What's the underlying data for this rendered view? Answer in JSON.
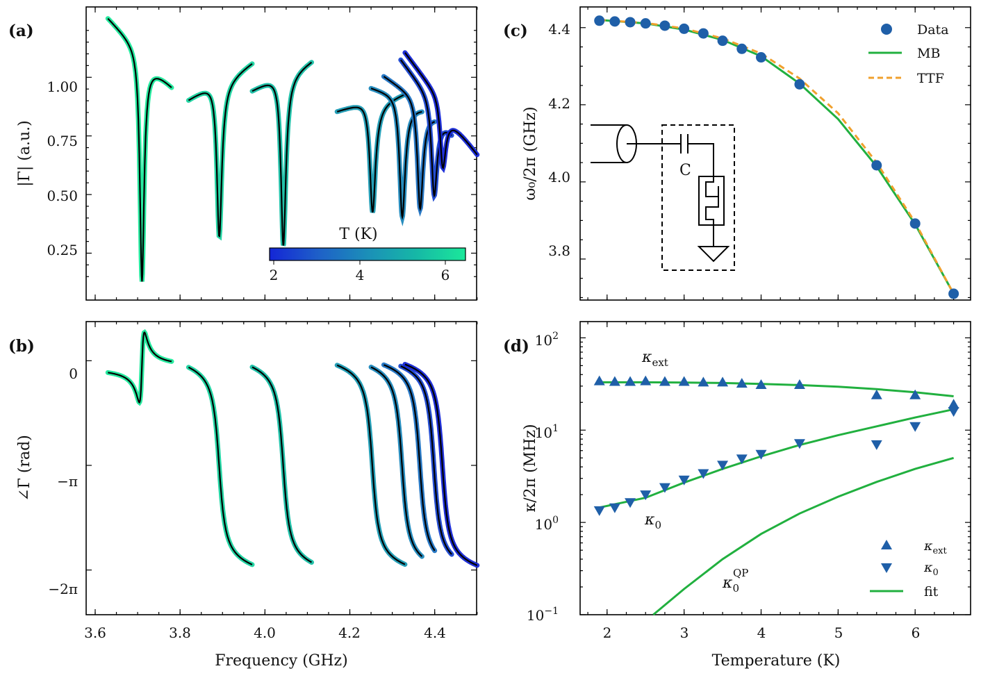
{
  "colors": {
    "data": "#1f5fa8",
    "mb": "#21b03f",
    "ttf": "#f0a02d",
    "fit": "#21b03f",
    "black": "#000000",
    "cmap": [
      "#1426d6",
      "#1e60c8",
      "#1b8fb8",
      "#16b8a6",
      "#1be89a"
    ]
  },
  "panels": {
    "a": {
      "label": "(a)",
      "ylabel": "|Γ| (a.u.)",
      "yticks": [
        "0.25",
        "0.50",
        "0.75",
        "1.00"
      ],
      "colorbar": {
        "title": "T (K)",
        "ticks": [
          "2",
          "4",
          "6"
        ],
        "range": [
          1.9,
          6.5
        ]
      }
    },
    "b": {
      "label": "(b)",
      "ylabel": "∠Γ (rad)",
      "yticks": [
        "0",
        "−π",
        "−2π"
      ]
    },
    "shared_x": {
      "label": "Frequency (GHz)",
      "ticks": [
        "3.6",
        "3.8",
        "4.0",
        "4.2",
        "4.4"
      ]
    },
    "c": {
      "label": "(c)",
      "ylabel": "ω₀/2π (GHz)",
      "yticks": [
        "3.8",
        "4.0",
        "4.2",
        "4.4"
      ],
      "legend": [
        "Data",
        "MB",
        "TTF"
      ],
      "inset_label": "C"
    },
    "d": {
      "label": "(d)",
      "ylabel": "κ/2π (MHz)",
      "xlabel": "Temperature (K)",
      "xticks": [
        "2",
        "3",
        "4",
        "5",
        "6"
      ],
      "yticks_base": "10",
      "yticks_exp": [
        "−1",
        "0",
        "1",
        "2"
      ],
      "ann_ext": {
        "main": "κ",
        "sub": "ext"
      },
      "ann_0": {
        "main": "κ",
        "sub": "0"
      },
      "ann_qp": {
        "main": "κ",
        "sub": "0",
        "sup": "QP"
      },
      "legend": [
        {
          "main": "κ",
          "sub": "ext"
        },
        {
          "main": "κ",
          "sub": "0"
        },
        {
          "main": "fit",
          "sub": ""
        }
      ]
    }
  },
  "chart_data": [
    {
      "panel": "a",
      "type": "line",
      "title": "",
      "xlabel": "Frequency (GHz)",
      "ylabel": "|Γ| (a.u.)",
      "xlim": [
        3.6,
        4.52
      ],
      "ylim": [
        0.05,
        1.3
      ],
      "series": [
        {
          "name": "T=6.5K",
          "T": 6.5,
          "range": [
            3.63,
            3.78
          ],
          "f0": 3.71,
          "width": 0.006,
          "depth": 0.97,
          "base_start": 1.25,
          "base_end": 0.97
        },
        {
          "name": "T=6.0K",
          "T": 6.0,
          "range": [
            3.82,
            3.97
          ],
          "f0": 3.892,
          "width": 0.007,
          "depth": 0.66,
          "base_start": 0.9,
          "base_end": 1.07
        },
        {
          "name": "T=5.5K",
          "T": 5.5,
          "range": [
            3.97,
            4.11
          ],
          "f0": 4.043,
          "width": 0.007,
          "depth": 0.73,
          "base_start": 0.94,
          "base_end": 1.08
        },
        {
          "name": "T=4.5K",
          "T": 4.5,
          "range": [
            4.17,
            4.33
          ],
          "f0": 4.253,
          "width": 0.008,
          "depth": 0.47,
          "base_start": 0.85,
          "base_end": 0.94
        },
        {
          "name": "T=4.0K",
          "T": 4.0,
          "range": [
            4.25,
            4.37
          ],
          "f0": 4.323,
          "width": 0.008,
          "depth": 0.5,
          "base_start": 0.95,
          "base_end": 0.88
        },
        {
          "name": "T=3.5K",
          "T": 3.5,
          "range": [
            4.28,
            4.4
          ],
          "f0": 4.365,
          "width": 0.008,
          "depth": 0.45,
          "base_start": 1.0,
          "base_end": 0.85
        },
        {
          "name": "T=2.5K",
          "T": 2.5,
          "range": [
            4.32,
            4.44
          ],
          "f0": 4.398,
          "width": 0.008,
          "depth": 0.38,
          "base_start": 1.07,
          "base_end": 0.78
        },
        {
          "name": "T=1.9K",
          "T": 1.9,
          "range": [
            4.33,
            4.5
          ],
          "f0": 4.418,
          "width": 0.008,
          "depth": 0.26,
          "base_start": 1.1,
          "base_end": 0.68
        }
      ]
    },
    {
      "panel": "b",
      "type": "line",
      "xlabel": "Frequency (GHz)",
      "ylabel": "∠Γ (rad)",
      "xlim": [
        3.6,
        4.52
      ],
      "ylim": [
        -7.5,
        1.3
      ],
      "series": [
        {
          "name": "T=6.5K",
          "T": 6.5,
          "range": [
            3.63,
            3.78
          ],
          "f0": 3.71,
          "kind": "undercoupled",
          "amp": 0.85
        },
        {
          "name": "T=6.0K",
          "T": 6.0,
          "range": [
            3.82,
            3.97
          ],
          "f0": 3.892,
          "kind": "step",
          "width": 0.011
        },
        {
          "name": "T=5.5K",
          "T": 5.5,
          "range": [
            3.97,
            4.11
          ],
          "f0": 4.043,
          "kind": "step",
          "width": 0.011
        },
        {
          "name": "T=4.5K",
          "T": 4.5,
          "range": [
            4.17,
            4.33
          ],
          "f0": 4.253,
          "kind": "step",
          "width": 0.011
        },
        {
          "name": "T=4.0K",
          "T": 4.0,
          "range": [
            4.25,
            4.37
          ],
          "f0": 4.323,
          "kind": "step",
          "width": 0.011
        },
        {
          "name": "T=3.5K",
          "T": 3.5,
          "range": [
            4.28,
            4.4
          ],
          "f0": 4.365,
          "kind": "step",
          "width": 0.011
        },
        {
          "name": "T=2.5K",
          "T": 2.5,
          "range": [
            4.32,
            4.44
          ],
          "f0": 4.398,
          "kind": "step",
          "width": 0.011
        },
        {
          "name": "T=1.9K",
          "T": 1.9,
          "range": [
            4.33,
            4.5
          ],
          "f0": 4.418,
          "kind": "step",
          "width": 0.011
        }
      ]
    },
    {
      "panel": "c",
      "type": "scatter",
      "xlabel": "Temperature (K)",
      "ylabel": "ω₀/2π (GHz)",
      "xlim": [
        1.65,
        6.72
      ],
      "ylim": [
        3.69,
        4.45
      ],
      "series": [
        {
          "name": "Data",
          "x": [
            1.9,
            2.1,
            2.3,
            2.5,
            2.75,
            3.0,
            3.25,
            3.5,
            3.75,
            4.0,
            4.5,
            5.5,
            6.0,
            6.5
          ],
          "y": [
            4.418,
            4.416,
            4.414,
            4.411,
            4.405,
            4.397,
            4.385,
            4.366,
            4.345,
            4.323,
            4.253,
            4.043,
            3.892,
            3.71
          ]
        },
        {
          "name": "MB",
          "kind": "fit",
          "x": [
            1.9,
            2.5,
            3.0,
            3.5,
            4.0,
            4.5,
            5.0,
            5.5,
            6.0,
            6.5
          ],
          "y": [
            4.42,
            4.411,
            4.395,
            4.368,
            4.326,
            4.255,
            4.163,
            4.04,
            3.89,
            3.71
          ]
        },
        {
          "name": "TTF",
          "kind": "fit",
          "x": [
            1.9,
            2.5,
            3.0,
            3.5,
            4.0,
            4.5,
            5.0,
            5.5,
            6.0,
            6.5
          ],
          "y": [
            4.42,
            4.412,
            4.398,
            4.372,
            4.333,
            4.268,
            4.178,
            4.05,
            3.895,
            3.71
          ]
        }
      ]
    },
    {
      "panel": "d",
      "type": "scatter",
      "xlabel": "Temperature (K)",
      "ylabel": "κ/2π (MHz)",
      "yscale": "log",
      "xlim": [
        1.65,
        6.72
      ],
      "ylim": [
        0.1,
        150
      ],
      "series": [
        {
          "name": "κ_ext",
          "marker": "triangle-up",
          "x": [
            1.9,
            2.1,
            2.3,
            2.5,
            2.75,
            3.0,
            3.25,
            3.5,
            3.75,
            4.0,
            4.5,
            5.5,
            6.0,
            6.5
          ],
          "y": [
            34,
            33.5,
            33.5,
            34,
            33.5,
            33.5,
            33,
            33,
            32,
            31,
            31,
            24,
            24,
            19
          ]
        },
        {
          "name": "κ_0",
          "marker": "triangle-down",
          "x": [
            1.9,
            2.1,
            2.3,
            2.5,
            2.75,
            3.0,
            3.25,
            3.5,
            3.75,
            4.0,
            4.5,
            5.5,
            6.0,
            6.5
          ],
          "y": [
            1.35,
            1.45,
            1.65,
            2.0,
            2.4,
            2.9,
            3.4,
            4.2,
            4.9,
            5.5,
            7.2,
            7.0,
            11,
            16
          ]
        },
        {
          "name": "fit κ_ext",
          "kind": "fit",
          "x": [
            1.9,
            2.5,
            3.0,
            3.5,
            4.0,
            4.5,
            5.0,
            5.5,
            6.0,
            6.5
          ],
          "y": [
            33,
            33,
            32.8,
            32.4,
            31.7,
            30.8,
            29.5,
            27.8,
            25.7,
            23.3
          ]
        },
        {
          "name": "fit κ_0",
          "kind": "fit",
          "x": [
            1.9,
            2.5,
            3.0,
            3.5,
            4.0,
            4.5,
            5.0,
            5.5,
            6.0,
            6.5
          ],
          "y": [
            1.45,
            1.85,
            2.7,
            3.8,
            5.2,
            6.9,
            8.8,
            11.0,
            13.7,
            16.8
          ]
        },
        {
          "name": "fit κ_0^QP",
          "kind": "fit",
          "x": [
            2.6,
            3.0,
            3.5,
            4.0,
            4.5,
            5.0,
            5.5,
            6.0,
            6.5
          ],
          "y": [
            0.1,
            0.19,
            0.4,
            0.75,
            1.25,
            1.9,
            2.75,
            3.8,
            5.0
          ]
        }
      ]
    }
  ]
}
